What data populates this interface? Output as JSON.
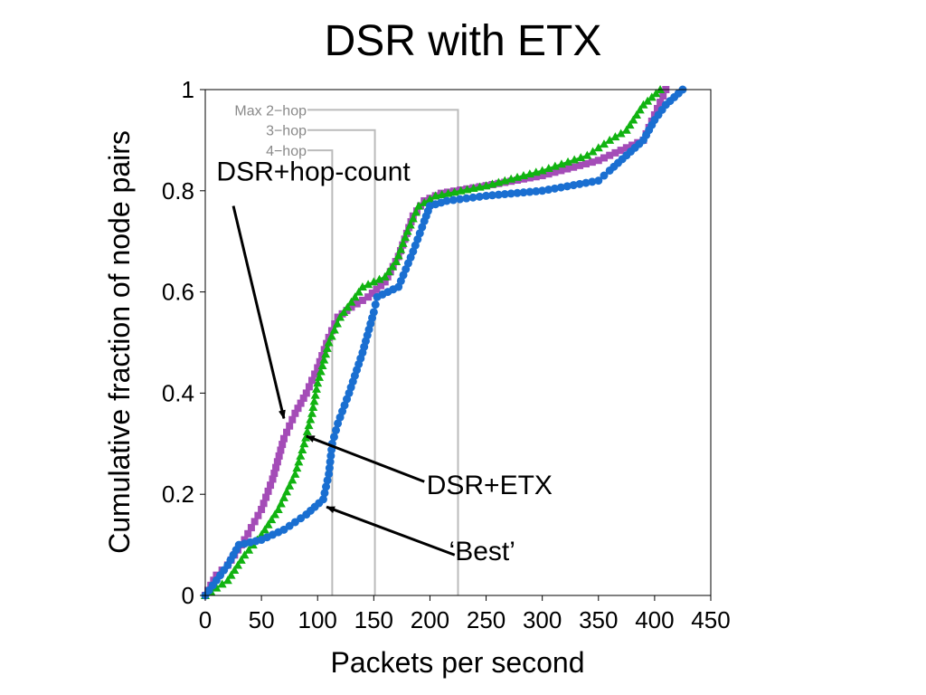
{
  "slide": {
    "title": "DSR with ETX"
  },
  "colors": {
    "hop": "#a44cb7",
    "etx": "#11b311",
    "best": "#1a6fd1",
    "ref": "#bbbbbb",
    "ref_text": "#8a8a8a"
  },
  "chart_data": {
    "type": "line",
    "title": "DSR with ETX",
    "xlabel": "Packets per second",
    "ylabel": "Cumulative fraction of node pairs",
    "xlim": [
      0,
      450
    ],
    "ylim": [
      0,
      1
    ],
    "xticks": [
      "0",
      "50",
      "100",
      "150",
      "200",
      "250",
      "300",
      "350",
      "400",
      "450"
    ],
    "yticks": [
      "0",
      "0.2",
      "0.4",
      "0.6",
      "0.8",
      "1"
    ],
    "grid": false,
    "series": [
      {
        "key": "hop",
        "color": "#a44cb7",
        "marker": "square",
        "points": [
          [
            0,
            0
          ],
          [
            10,
            0.04
          ],
          [
            20,
            0.06
          ],
          [
            35,
            0.11
          ],
          [
            50,
            0.17
          ],
          [
            60,
            0.23
          ],
          [
            70,
            0.31
          ],
          [
            80,
            0.36
          ],
          [
            90,
            0.4
          ],
          [
            100,
            0.45
          ],
          [
            110,
            0.51
          ],
          [
            118,
            0.55
          ],
          [
            130,
            0.57
          ],
          [
            145,
            0.59
          ],
          [
            160,
            0.62
          ],
          [
            172,
            0.67
          ],
          [
            185,
            0.75
          ],
          [
            195,
            0.78
          ],
          [
            210,
            0.795
          ],
          [
            250,
            0.81
          ],
          [
            300,
            0.83
          ],
          [
            350,
            0.86
          ],
          [
            370,
            0.88
          ],
          [
            390,
            0.9
          ],
          [
            400,
            0.95
          ],
          [
            410,
            1.0
          ]
        ]
      },
      {
        "key": "etx",
        "color": "#11b311",
        "marker": "triangle",
        "points": [
          [
            0,
            0
          ],
          [
            20,
            0.03
          ],
          [
            35,
            0.08
          ],
          [
            50,
            0.12
          ],
          [
            65,
            0.17
          ],
          [
            80,
            0.24
          ],
          [
            88,
            0.3
          ],
          [
            95,
            0.36
          ],
          [
            100,
            0.42
          ],
          [
            110,
            0.5
          ],
          [
            120,
            0.55
          ],
          [
            140,
            0.61
          ],
          [
            160,
            0.63
          ],
          [
            170,
            0.66
          ],
          [
            180,
            0.72
          ],
          [
            190,
            0.77
          ],
          [
            205,
            0.79
          ],
          [
            250,
            0.81
          ],
          [
            300,
            0.84
          ],
          [
            340,
            0.87
          ],
          [
            360,
            0.9
          ],
          [
            375,
            0.92
          ],
          [
            390,
            0.97
          ],
          [
            405,
            1.0
          ]
        ]
      },
      {
        "key": "best",
        "color": "#1a6fd1",
        "marker": "circle",
        "points": [
          [
            0,
            0
          ],
          [
            20,
            0.06
          ],
          [
            30,
            0.1
          ],
          [
            50,
            0.11
          ],
          [
            70,
            0.13
          ],
          [
            90,
            0.16
          ],
          [
            105,
            0.19
          ],
          [
            110,
            0.24
          ],
          [
            113,
            0.3
          ],
          [
            118,
            0.34
          ],
          [
            128,
            0.4
          ],
          [
            140,
            0.48
          ],
          [
            150,
            0.56
          ],
          [
            153,
            0.59
          ],
          [
            172,
            0.61
          ],
          [
            185,
            0.68
          ],
          [
            195,
            0.74
          ],
          [
            200,
            0.77
          ],
          [
            215,
            0.78
          ],
          [
            250,
            0.79
          ],
          [
            300,
            0.8
          ],
          [
            350,
            0.82
          ],
          [
            360,
            0.84
          ],
          [
            375,
            0.87
          ],
          [
            390,
            0.9
          ],
          [
            400,
            0.94
          ],
          [
            410,
            0.97
          ],
          [
            425,
            1.0
          ]
        ]
      }
    ],
    "reference_lines": [
      {
        "label": "Max 2−hop",
        "x": 225,
        "y": 0.96
      },
      {
        "label": "3−hop",
        "x": 151,
        "y": 0.92
      },
      {
        "label": "4−hop",
        "x": 113,
        "y": 0.88
      }
    ],
    "annotations": [
      {
        "key": "hop",
        "text": "DSR+hop-count",
        "text_x": 10,
        "text_y": 0.82,
        "arrow_from": [
          25,
          0.77
        ],
        "arrow_to": [
          70,
          0.35
        ]
      },
      {
        "key": "etx",
        "text": "DSR+ETX",
        "text_x": 197,
        "text_y": 0.2,
        "arrow_from": [
          195,
          0.225
        ],
        "arrow_to": [
          90,
          0.315
        ]
      },
      {
        "key": "best",
        "text": "‘Best’",
        "text_x": 217,
        "text_y": 0.07,
        "arrow_from": [
          222,
          0.08
        ],
        "arrow_to": [
          108,
          0.175
        ]
      }
    ]
  }
}
